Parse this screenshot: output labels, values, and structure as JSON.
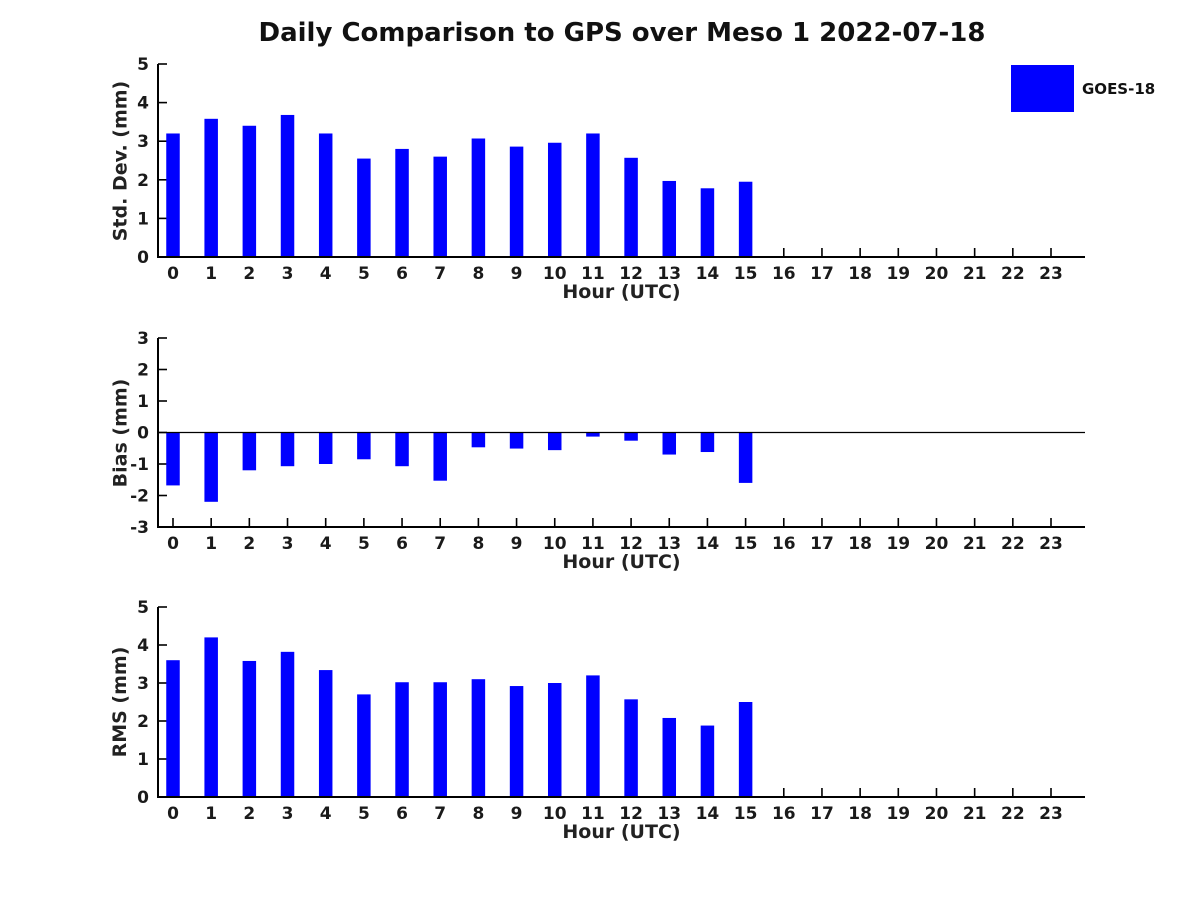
{
  "figure": {
    "title": "Daily Comparison to GPS over Meso 1 2022-07-18",
    "bar_color": "#0000ff",
    "axis_color": "#000000",
    "text_color": "#1a1a1a",
    "legend": {
      "label": "GOES-18",
      "color": "#0000ff",
      "position": "upper-right"
    }
  },
  "chart_data": [
    {
      "type": "bar",
      "series_name": "GOES-18",
      "xlabel": "Hour (UTC)",
      "ylabel": "Std. Dev. (mm)",
      "categories": [
        0,
        1,
        2,
        3,
        4,
        5,
        6,
        7,
        8,
        9,
        10,
        11,
        12,
        13,
        14,
        15,
        16,
        17,
        18,
        19,
        20,
        21,
        22,
        23
      ],
      "values": [
        3.2,
        3.58,
        3.4,
        3.68,
        3.2,
        2.55,
        2.8,
        2.6,
        3.07,
        2.86,
        2.96,
        3.2,
        2.57,
        1.97,
        1.78,
        1.95,
        null,
        null,
        null,
        null,
        null,
        null,
        null,
        null
      ],
      "ylim": [
        0,
        5
      ],
      "yticks": [
        0,
        1,
        2,
        3,
        4,
        5
      ],
      "grid": false,
      "zero_line": false
    },
    {
      "type": "bar",
      "series_name": "GOES-18",
      "xlabel": "Hour (UTC)",
      "ylabel": "Bias (mm)",
      "categories": [
        0,
        1,
        2,
        3,
        4,
        5,
        6,
        7,
        8,
        9,
        10,
        11,
        12,
        13,
        14,
        15,
        16,
        17,
        18,
        19,
        20,
        21,
        22,
        23
      ],
      "values": [
        -1.68,
        -2.2,
        -1.2,
        -1.07,
        -1.0,
        -0.85,
        -1.07,
        -1.53,
        -0.47,
        -0.51,
        -0.56,
        -0.13,
        -0.26,
        -0.7,
        -0.62,
        -1.6,
        null,
        null,
        null,
        null,
        null,
        null,
        null,
        null
      ],
      "ylim": [
        -3,
        3
      ],
      "yticks": [
        -3,
        -2,
        -1,
        0,
        1,
        2,
        3
      ],
      "grid": false,
      "zero_line": true
    },
    {
      "type": "bar",
      "series_name": "GOES-18",
      "xlabel": "Hour (UTC)",
      "ylabel": "RMS (mm)",
      "categories": [
        0,
        1,
        2,
        3,
        4,
        5,
        6,
        7,
        8,
        9,
        10,
        11,
        12,
        13,
        14,
        15,
        16,
        17,
        18,
        19,
        20,
        21,
        22,
        23
      ],
      "values": [
        3.6,
        4.2,
        3.58,
        3.82,
        3.34,
        2.7,
        3.02,
        3.02,
        3.1,
        2.92,
        3.0,
        3.2,
        2.57,
        2.08,
        1.88,
        2.5,
        null,
        null,
        null,
        null,
        null,
        null,
        null,
        null
      ],
      "ylim": [
        0,
        5
      ],
      "yticks": [
        0,
        1,
        2,
        3,
        4,
        5
      ],
      "grid": false,
      "zero_line": false
    }
  ]
}
